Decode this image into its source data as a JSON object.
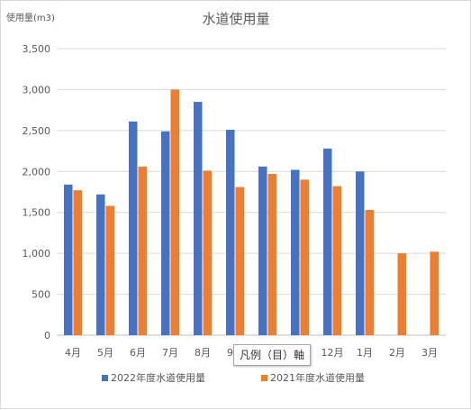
{
  "chart_data": {
    "type": "bar",
    "title": "水道使用量",
    "ylabel": "使用量(m3)",
    "xlabel": "",
    "categories": [
      "4月",
      "5月",
      "6月",
      "7月",
      "8月",
      "9月",
      "10月",
      "11月",
      "12月",
      "1月",
      "2月",
      "3月"
    ],
    "ylim": [
      0,
      3500
    ],
    "yticks": [
      "0",
      "500",
      "1,000",
      "1,500",
      "2,000",
      "2,500",
      "3,000",
      "3,500"
    ],
    "ytick_values": [
      0,
      500,
      1000,
      1500,
      2000,
      2500,
      3000,
      3500
    ],
    "grid": true,
    "legend_position": "bottom",
    "series": [
      {
        "name": "2022年度水道使用量",
        "color": "#4472C4",
        "values": [
          1840,
          1720,
          2610,
          2490,
          2850,
          2510,
          2060,
          2020,
          2280,
          2000,
          null,
          null
        ]
      },
      {
        "name": "2021年度水道使用量",
        "color": "#ED7D31",
        "values": [
          1770,
          1580,
          2060,
          3000,
          2010,
          1810,
          1970,
          1900,
          1820,
          1530,
          1000,
          1020
        ]
      }
    ]
  },
  "tooltip": {
    "text": "凡例（目）軸"
  }
}
